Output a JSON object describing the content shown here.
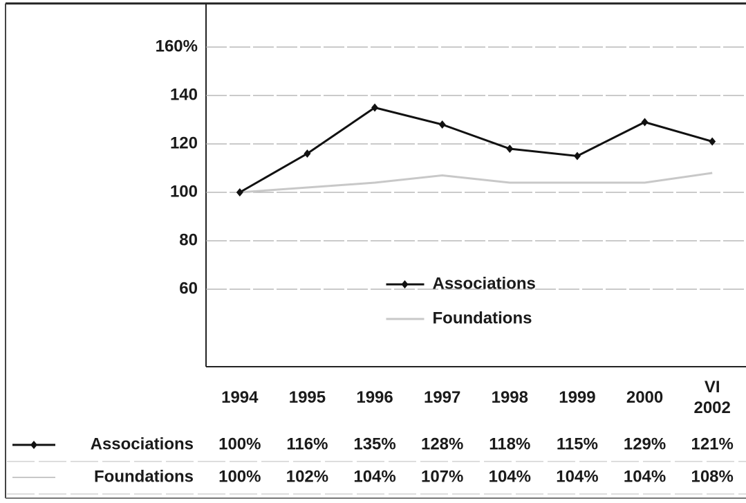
{
  "chart_data": {
    "type": "line",
    "categories": [
      "1994",
      "1995",
      "1996",
      "1997",
      "1998",
      "1999",
      "2000",
      "VI 2002"
    ],
    "series": [
      {
        "name": "Associations",
        "color": "#111111",
        "values": [
          100,
          116,
          135,
          128,
          118,
          115,
          129,
          121
        ],
        "value_labels": [
          "100%",
          "116%",
          "135%",
          "128%",
          "118%",
          "115%",
          "129%",
          "121%"
        ]
      },
      {
        "name": "Foundations",
        "color": "#c8c8c8",
        "values": [
          100,
          102,
          104,
          107,
          104,
          104,
          104,
          108
        ],
        "value_labels": [
          "100%",
          "102%",
          "104%",
          "107%",
          "104%",
          "104%",
          "104%",
          "108%"
        ]
      }
    ],
    "ylim": [
      28,
      178
    ],
    "yticks": [
      60,
      80,
      100,
      120,
      140,
      {
        "value": 160,
        "label": "160%"
      }
    ],
    "grid": true,
    "legend": "center"
  }
}
